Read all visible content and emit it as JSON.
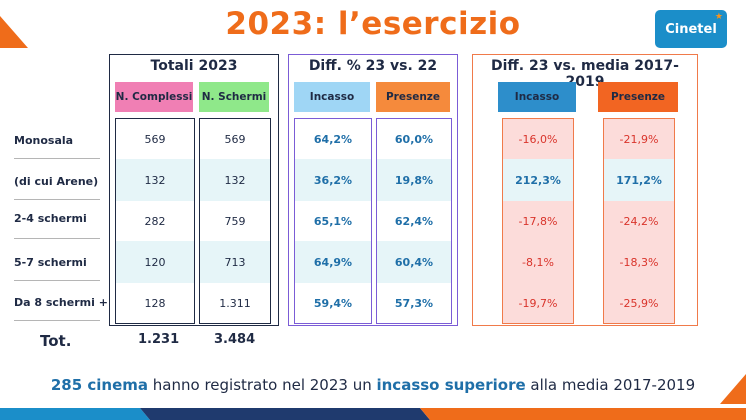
{
  "title": "2023: l’esercizio",
  "logo": {
    "text": "Cinetel",
    "color": "#1b8ec9"
  },
  "row_labels": [
    "Monosala",
    "(di cui Arene)",
    "2-4 schermi",
    "5-7 schermi",
    "Da 8 schermi +"
  ],
  "totali": {
    "title": "Totali 2023",
    "columns": [
      {
        "header": "N. Complessi",
        "color": "#f07fb4",
        "values": [
          "569",
          "132",
          "282",
          "120",
          "128"
        ]
      },
      {
        "header": "N. Schermi",
        "color": "#8fe88a",
        "values": [
          "569",
          "132",
          "759",
          "713",
          "1.311"
        ]
      }
    ]
  },
  "diff": {
    "title": "Diff. % 23 vs. 22",
    "columns": [
      {
        "header": "Incasso",
        "color": "#9fd6f5",
        "values": [
          "64,2%",
          "36,2%",
          "65,1%",
          "64,9%",
          "59,4%"
        ]
      },
      {
        "header": "Presenze",
        "color": "#f58a3c",
        "values": [
          "60,0%",
          "19,8%",
          "62,4%",
          "60,4%",
          "57,3%"
        ]
      }
    ]
  },
  "media": {
    "title": "Diff. 23 vs. media 2017-2019",
    "columns": [
      {
        "header": "Incasso",
        "color": "#2d8ecb",
        "values": [
          "-16,0%",
          "212,3%",
          "-17,8%",
          "-8,1%",
          "-19,7%"
        ]
      },
      {
        "header": "Presenze",
        "color": "#f26522",
        "values": [
          "-21,9%",
          "171,2%",
          "-24,2%",
          "-18,3%",
          "-25,9%"
        ]
      }
    ]
  },
  "totals": {
    "label": "Tot.",
    "complessi": "1.231",
    "schermi": "3.484"
  },
  "footer": {
    "part1": "285 cinema",
    "part2": " hanno registrato nel 2023 un ",
    "part3": "incasso superiore",
    "part4": " alla media 2017-2019"
  },
  "colors": {
    "orange": "#ef6c1a",
    "navy": "#1f2a44",
    "blue_text": "#1f6fa8",
    "red_text": "#d9342b"
  }
}
